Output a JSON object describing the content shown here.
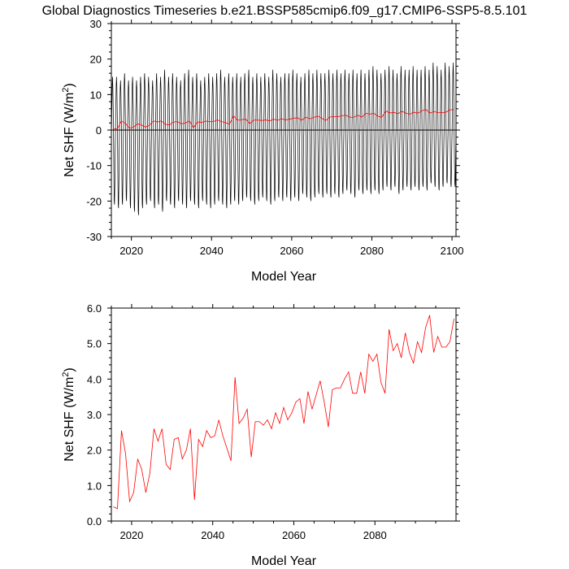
{
  "title": "Global Diagnostics Timeseries b.e21.BSSP585cmip6.f09_g17.CMIP6-SSP5-8.5.101",
  "chart_data": [
    {
      "type": "line",
      "xlabel": "Model Year",
      "ylabel": "Net SHF (W/m²)",
      "ylabel_base": "Net SHF (W/m",
      "ylabel_sup": "2",
      "ylabel_tail": ")",
      "xlim": [
        2015,
        2101
      ],
      "ylim": [
        -30,
        30
      ],
      "xticks": [
        2020,
        2040,
        2060,
        2080,
        2100
      ],
      "xticklabels": [
        "2020",
        "2040",
        "2060",
        "2080",
        "2100"
      ],
      "yticks": [
        -30,
        -20,
        -10,
        0,
        10,
        20,
        30
      ],
      "yticklabels": [
        "-30",
        "-20",
        "-10",
        "0",
        "10",
        "20",
        "30"
      ],
      "grid": false,
      "zero_line": true,
      "series": [
        {
          "color": "#000000",
          "style": "monthly",
          "x": [
            2015.5,
            2016.5,
            2017.5,
            2018.5,
            2019.5,
            2020.5,
            2021.5,
            2022.5,
            2023.5,
            2024.5,
            2025.5,
            2026.5,
            2027.5,
            2028.5,
            2029.5,
            2030.5,
            2031.5,
            2032.5,
            2033.5,
            2034.5,
            2035.5,
            2036.5,
            2037.5,
            2038.5,
            2039.5,
            2040.5,
            2041.5,
            2042.5,
            2043.5,
            2044.5,
            2045.5,
            2046.5,
            2047.5,
            2048.5,
            2049.5,
            2050.5,
            2051.5,
            2052.5,
            2053.5,
            2054.5,
            2055.5,
            2056.5,
            2057.5,
            2058.5,
            2059.5,
            2060.5,
            2061.5,
            2062.5,
            2063.5,
            2064.5,
            2065.5,
            2066.5,
            2067.5,
            2068.5,
            2069.5,
            2070.5,
            2071.5,
            2072.5,
            2073.5,
            2074.5,
            2075.5,
            2076.5,
            2077.5,
            2078.5,
            2079.5,
            2080.5,
            2081.5,
            2082.5,
            2083.5,
            2084.5,
            2085.5,
            2086.5,
            2087.5,
            2088.5,
            2089.5,
            2090.5,
            2091.5,
            2092.5,
            2093.5,
            2094.5,
            2095.5,
            2096.5,
            2097.5,
            2098.5,
            2099.5,
            2100.5
          ],
          "max": [
            15,
            15,
            14,
            16,
            14,
            15,
            14,
            15,
            16,
            15,
            14,
            16,
            15,
            17,
            15,
            16,
            15,
            14,
            16,
            17,
            15,
            16,
            14,
            15,
            16,
            15,
            16,
            17,
            15,
            16,
            15,
            16,
            15,
            16,
            17,
            15,
            16,
            15,
            16,
            15,
            17,
            16,
            15,
            16,
            16,
            17,
            16,
            15,
            16,
            17,
            16,
            17,
            16,
            16,
            17,
            16,
            17,
            16,
            17,
            16,
            17,
            16,
            17,
            16,
            17,
            18,
            17,
            16,
            17,
            18,
            17,
            16,
            18,
            17,
            17,
            18,
            17,
            17,
            18,
            17,
            19,
            18,
            17,
            19,
            18,
            19
          ],
          "min": [
            -21,
            -22,
            -21,
            -20,
            -22,
            -23,
            -24,
            -22,
            -21,
            -20,
            -22,
            -21,
            -23,
            -20,
            -21,
            -22,
            -20,
            -21,
            -22,
            -20,
            -21,
            -22,
            -20,
            -21,
            -22,
            -21,
            -20,
            -21,
            -22,
            -21,
            -20,
            -21,
            -20,
            -19,
            -20,
            -21,
            -20,
            -19,
            -20,
            -21,
            -20,
            -19,
            -20,
            -19,
            -20,
            -19,
            -20,
            -18,
            -19,
            -20,
            -19,
            -18,
            -19,
            -18,
            -19,
            -18,
            -19,
            -18,
            -17,
            -18,
            -19,
            -17,
            -18,
            -17,
            -18,
            -17,
            -18,
            -17,
            -16,
            -17,
            -16,
            -18,
            -17,
            -16,
            -17,
            -16,
            -17,
            -16,
            -17,
            -15,
            -16,
            -17,
            -16,
            -15,
            -16,
            -16
          ]
        },
        {
          "color": "#ff0000",
          "style": "annual",
          "x": [
            2015.5,
            2016.5,
            2017.5,
            2018.5,
            2019.5,
            2020.5,
            2021.5,
            2022.5,
            2023.5,
            2024.5,
            2025.5,
            2026.5,
            2027.5,
            2028.5,
            2029.5,
            2030.5,
            2031.5,
            2032.5,
            2033.5,
            2034.5,
            2035.5,
            2036.5,
            2037.5,
            2038.5,
            2039.5,
            2040.5,
            2041.5,
            2042.5,
            2043.5,
            2044.5,
            2045.5,
            2046.5,
            2047.5,
            2048.5,
            2049.5,
            2050.5,
            2051.5,
            2052.5,
            2053.5,
            2054.5,
            2055.5,
            2056.5,
            2057.5,
            2058.5,
            2059.5,
            2060.5,
            2061.5,
            2062.5,
            2063.5,
            2064.5,
            2065.5,
            2066.5,
            2067.5,
            2068.5,
            2069.5,
            2070.5,
            2071.5,
            2072.5,
            2073.5,
            2074.5,
            2075.5,
            2076.5,
            2077.5,
            2078.5,
            2079.5,
            2080.5,
            2081.5,
            2082.5,
            2083.5,
            2084.5,
            2085.5,
            2086.5,
            2087.5,
            2088.5,
            2089.5,
            2090.5,
            2091.5,
            2092.5,
            2093.5,
            2094.5,
            2095.5,
            2096.5,
            2097.5,
            2098.5,
            2099.5,
            2100.5
          ],
          "y": [
            0.4,
            0.35,
            2.55,
            1.9,
            0.55,
            0.8,
            1.75,
            1.45,
            0.8,
            1.35,
            2.6,
            2.25,
            2.6,
            1.6,
            1.45,
            2.3,
            2.35,
            1.75,
            2.0,
            2.6,
            0.6,
            2.3,
            2.1,
            2.55,
            2.35,
            2.4,
            2.85,
            2.4,
            2.05,
            1.7,
            4.05,
            2.75,
            2.9,
            3.15,
            1.8,
            2.8,
            2.8,
            2.7,
            2.85,
            2.6,
            3.05,
            2.75,
            3.2,
            2.85,
            3.05,
            3.35,
            3.45,
            2.75,
            3.65,
            3.15,
            3.55,
            3.95,
            3.35,
            2.65,
            3.7,
            3.75,
            3.75,
            4.0,
            4.2,
            3.6,
            3.6,
            4.2,
            3.6,
            4.7,
            4.5,
            4.7,
            3.9,
            3.6,
            5.4,
            4.8,
            5.0,
            4.6,
            5.3,
            4.75,
            4.45,
            5.05,
            4.75,
            5.45,
            5.8,
            4.75,
            5.2,
            4.9,
            4.9,
            5.05,
            5.7,
            5.75
          ]
        }
      ]
    },
    {
      "type": "line",
      "xlabel": "Model Year",
      "ylabel": "Net SHF (W/m²)",
      "ylabel_base": "Net SHF (W/m",
      "ylabel_sup": "2",
      "ylabel_tail": ")",
      "xlim": [
        2015,
        2100
      ],
      "ylim": [
        0,
        6
      ],
      "xticks": [
        2020,
        2040,
        2060,
        2080
      ],
      "xticklabels": [
        "2020",
        "2040",
        "2060",
        "2080"
      ],
      "yticks": [
        0,
        1,
        2,
        3,
        4,
        5,
        6
      ],
      "yticklabels": [
        "0.0",
        "1.0",
        "2.0",
        "3.0",
        "4.0",
        "5.0",
        "6.0"
      ],
      "grid": false,
      "zero_line": false,
      "series": [
        {
          "color": "#ff0000",
          "style": "annual",
          "x": [
            2015.5,
            2016.5,
            2017.5,
            2018.5,
            2019.5,
            2020.5,
            2021.5,
            2022.5,
            2023.5,
            2024.5,
            2025.5,
            2026.5,
            2027.5,
            2028.5,
            2029.5,
            2030.5,
            2031.5,
            2032.5,
            2033.5,
            2034.5,
            2035.5,
            2036.5,
            2037.5,
            2038.5,
            2039.5,
            2040.5,
            2041.5,
            2042.5,
            2043.5,
            2044.5,
            2045.5,
            2046.5,
            2047.5,
            2048.5,
            2049.5,
            2050.5,
            2051.5,
            2052.5,
            2053.5,
            2054.5,
            2055.5,
            2056.5,
            2057.5,
            2058.5,
            2059.5,
            2060.5,
            2061.5,
            2062.5,
            2063.5,
            2064.5,
            2065.5,
            2066.5,
            2067.5,
            2068.5,
            2069.5,
            2070.5,
            2071.5,
            2072.5,
            2073.5,
            2074.5,
            2075.5,
            2076.5,
            2077.5,
            2078.5,
            2079.5,
            2080.5,
            2081.5,
            2082.5,
            2083.5,
            2084.5,
            2085.5,
            2086.5,
            2087.5,
            2088.5,
            2089.5,
            2090.5,
            2091.5,
            2092.5,
            2093.5,
            2094.5,
            2095.5,
            2096.5,
            2097.5,
            2098.5,
            2099.5
          ],
          "y": [
            0.4,
            0.35,
            2.55,
            1.9,
            0.55,
            0.8,
            1.75,
            1.45,
            0.8,
            1.35,
            2.6,
            2.25,
            2.6,
            1.6,
            1.45,
            2.3,
            2.35,
            1.75,
            2.0,
            2.6,
            0.6,
            2.3,
            2.1,
            2.55,
            2.35,
            2.4,
            2.85,
            2.4,
            2.05,
            1.7,
            4.05,
            2.75,
            2.9,
            3.15,
            1.8,
            2.8,
            2.8,
            2.7,
            2.85,
            2.6,
            3.05,
            2.75,
            3.2,
            2.85,
            3.05,
            3.35,
            3.45,
            2.75,
            3.65,
            3.15,
            3.55,
            3.95,
            3.35,
            2.65,
            3.7,
            3.75,
            3.75,
            4.0,
            4.2,
            3.6,
            3.6,
            4.2,
            3.6,
            4.7,
            4.5,
            4.7,
            3.9,
            3.6,
            5.4,
            4.8,
            5.0,
            4.6,
            5.3,
            4.75,
            4.45,
            5.05,
            4.75,
            5.45,
            5.8,
            4.75,
            5.2,
            4.9,
            4.9,
            5.05,
            5.7
          ]
        }
      ]
    }
  ]
}
